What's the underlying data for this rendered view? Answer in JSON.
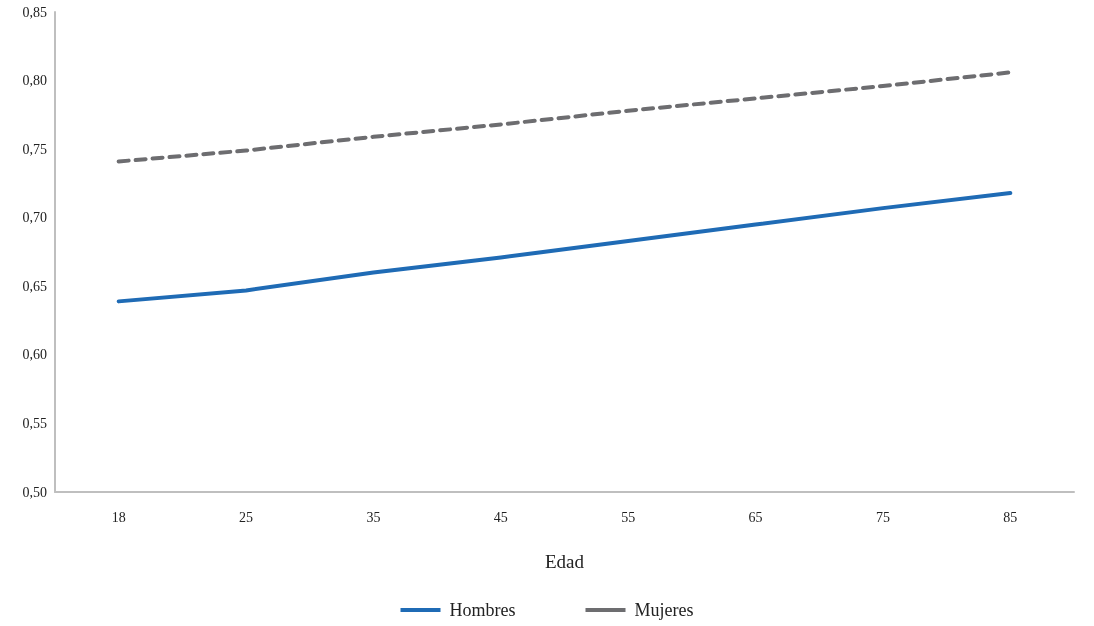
{
  "chart_data": {
    "type": "line",
    "xlabel": "Edad",
    "categories": [
      "18",
      "25",
      "35",
      "45",
      "55",
      "65",
      "75",
      "85"
    ],
    "series": [
      {
        "name": "Hombres",
        "color": "#1f6bb5",
        "line_style": "solid",
        "values": [
          0.639,
          0.647,
          0.66,
          0.671,
          0.683,
          0.695,
          0.707,
          0.718
        ]
      },
      {
        "name": "Mujeres",
        "color": "#6d6d70",
        "line_style": "dashed",
        "values": [
          0.741,
          0.749,
          0.759,
          0.768,
          0.778,
          0.787,
          0.796,
          0.806
        ]
      }
    ],
    "ylim": [
      0.5,
      0.85
    ],
    "yticks": [
      {
        "value": 0.5,
        "label": "0,50"
      },
      {
        "value": 0.55,
        "label": "0,55"
      },
      {
        "value": 0.6,
        "label": "0,60"
      },
      {
        "value": 0.65,
        "label": "0,65"
      },
      {
        "value": 0.7,
        "label": "0,70"
      },
      {
        "value": 0.75,
        "label": "0,75"
      },
      {
        "value": 0.8,
        "label": "0,80"
      },
      {
        "value": 0.85,
        "label": "0,85"
      }
    ],
    "grid": false,
    "legend": "bottom",
    "marker": "none"
  }
}
